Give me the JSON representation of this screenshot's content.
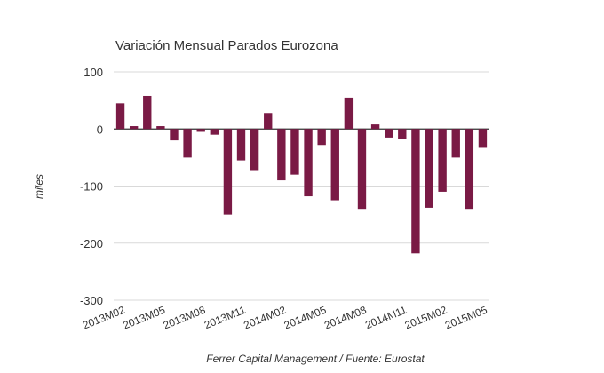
{
  "colors": {
    "bar": "#7a1a45",
    "grid": "#d9d9d9",
    "zero": "#333333",
    "text": "#333333"
  },
  "chart_data": {
    "type": "bar",
    "title": "Variación Mensual Parados Eurozona",
    "xlabel": "",
    "ylabel": "miles",
    "footer": "Ferrer Capital Management / Fuente: Eurostat",
    "ylim": [
      -300,
      100
    ],
    "yticks": [
      100,
      0,
      -100,
      -200,
      -300
    ],
    "ytick_labels": [
      "100",
      "0",
      "-100",
      "-200",
      "-300"
    ],
    "categories": [
      "2013M02",
      "2013M03",
      "2013M04",
      "2013M05",
      "2013M06",
      "2013M07",
      "2013M08",
      "2013M09",
      "2013M10",
      "2013M11",
      "2013M12",
      "2014M01",
      "2014M02",
      "2014M03",
      "2014M04",
      "2014M05",
      "2014M06",
      "2014M07",
      "2014M08",
      "2014M09",
      "2014M10",
      "2014M11",
      "2014M12",
      "2015M01",
      "2015M02",
      "2015M03",
      "2015M04",
      "2015M05"
    ],
    "xtick_labels": [
      "2013M02",
      "2013M05",
      "2013M08",
      "2013M11",
      "2014M02",
      "2014M05",
      "2014M08",
      "2014M11",
      "2015M02",
      "2015M05"
    ],
    "values": [
      45,
      5,
      58,
      5,
      -20,
      -50,
      -5,
      -10,
      -150,
      -55,
      -72,
      28,
      -90,
      -80,
      -118,
      -28,
      -125,
      55,
      -140,
      8,
      -15,
      -18,
      -218,
      -138,
      -110,
      -50,
      -140,
      -33
    ]
  }
}
